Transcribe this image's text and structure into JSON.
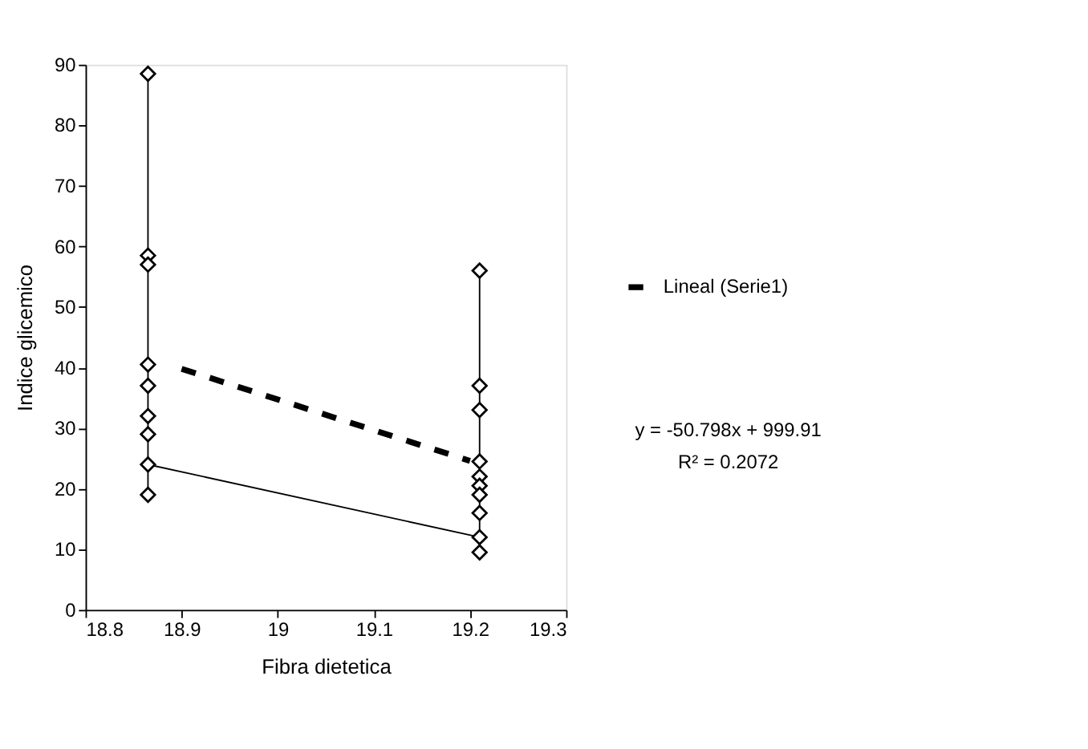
{
  "chart_data": {
    "type": "line",
    "xlabel": "Fibra dietetica",
    "ylabel": "Indice glicemico",
    "xlim": [
      18.8,
      19.3
    ],
    "xticks": [
      18.8,
      18.9,
      19,
      19.1,
      19.2,
      19.3
    ],
    "ylim": [
      0,
      90
    ],
    "yticks": [
      0,
      10,
      20,
      30,
      40,
      50,
      60,
      70,
      80,
      90
    ],
    "grid": false,
    "legend": "right",
    "marker": "diamond",
    "series": [
      {
        "color": "#000000",
        "line_style": "solid",
        "x": [
          18.865,
          18.865,
          18.865,
          18.865,
          18.865,
          18.865,
          18.865,
          18.865,
          18.865,
          19.21,
          19.21,
          19.21,
          19.21,
          19.21,
          19.21,
          19.21,
          19.21,
          19.21,
          19.21
        ],
        "values": [
          19,
          88.5,
          58.5,
          57,
          40.5,
          37,
          32,
          29,
          24,
          12,
          9.5,
          56,
          37,
          33,
          24.5,
          22,
          20.5,
          19,
          16
        ]
      },
      {
        "name": "Lineal (Serie1)",
        "color": "#000000",
        "marker": "none",
        "line_style": "dashed",
        "x": [
          18.9,
          19.2
        ],
        "values": [
          39.8,
          24.6
        ]
      }
    ],
    "annotations": [
      "y = -50.798x + 999.91",
      "R² = 0.2072"
    ]
  }
}
